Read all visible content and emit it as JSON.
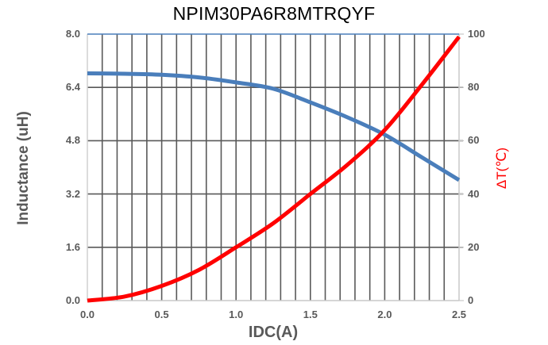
{
  "chart": {
    "title": "NPIM30PA6R8MTRQYF",
    "xlabel": "IDC(A)",
    "ylabel_left": "Inductance  (uH)",
    "ylabel_right": "ΔT(℃)",
    "x_ticks": [
      "0.0",
      "0.5",
      "1.0",
      "1.5",
      "2.0",
      "2.5"
    ],
    "y_left_ticks": [
      "0.0",
      "1.6",
      "3.2",
      "4.8",
      "6.4",
      "8.0"
    ],
    "y_right_ticks": [
      "0",
      "20",
      "40",
      "60",
      "80",
      "100"
    ],
    "colors": {
      "inductance": "#4a7ebb",
      "temperature": "#ff0000",
      "grid": "#595959",
      "axis_text": "#595959"
    }
  },
  "chart_data": {
    "type": "line",
    "title": "NPIM30PA6R8MTRQYF",
    "xlabel": "IDC(A)",
    "ylabel": "Inductance  (uH)",
    "y2label": "ΔT(℃)",
    "xlim": [
      0,
      2.5
    ],
    "ylim": [
      0,
      8.0
    ],
    "y2lim": [
      0,
      100
    ],
    "grid": true,
    "legend": null,
    "x": [
      0.0,
      0.25,
      0.5,
      0.75,
      1.0,
      1.25,
      1.5,
      1.75,
      2.0,
      2.25,
      2.5
    ],
    "series": [
      {
        "name": "Inductance (uH)",
        "axis": "left",
        "color": "#4a7ebb",
        "values": [
          6.82,
          6.81,
          6.78,
          6.7,
          6.55,
          6.36,
          5.95,
          5.5,
          4.98,
          4.3,
          3.62
        ]
      },
      {
        "name": "ΔT (℃)",
        "axis": "right",
        "color": "#ff0000",
        "values": [
          0,
          1.5,
          5.5,
          11.5,
          20,
          29,
          40,
          51,
          64,
          81,
          99
        ]
      }
    ]
  }
}
